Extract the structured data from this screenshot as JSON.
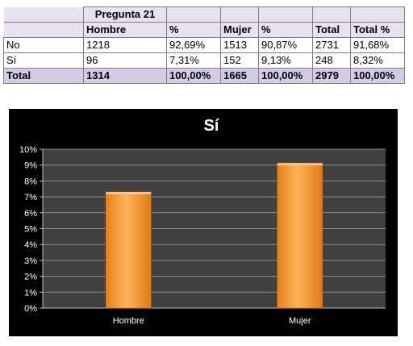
{
  "table": {
    "group_header": "Pregunta 21",
    "columns": [
      "Hombre",
      "%",
      "Mujer",
      "%",
      "Total",
      "Total %"
    ],
    "rows": [
      {
        "label": "No",
        "cells": [
          "1218",
          "92,69%",
          "1513",
          "90,87%",
          "2731",
          "91,68%"
        ]
      },
      {
        "label": "Sí",
        "cells": [
          "96",
          "7,31%",
          "152",
          "9,13%",
          "248",
          "8,32%"
        ]
      }
    ],
    "total": {
      "label": "Total",
      "cells": [
        "1314",
        "100,00%",
        "1665",
        "100,00%",
        "2979",
        "100,00%"
      ]
    }
  },
  "chart_data": {
    "type": "bar",
    "title": "Sí",
    "categories": [
      "Hombre",
      "Mujer"
    ],
    "values": [
      7.31,
      9.13
    ],
    "ylim": [
      0,
      10
    ],
    "y_ticks": [
      "0%",
      "1%",
      "2%",
      "3%",
      "4%",
      "5%",
      "6%",
      "7%",
      "8%",
      "9%",
      "10%"
    ],
    "grid": true,
    "bar_color": "#f28c1e",
    "background": "#000000",
    "plot_background": "#404040"
  }
}
